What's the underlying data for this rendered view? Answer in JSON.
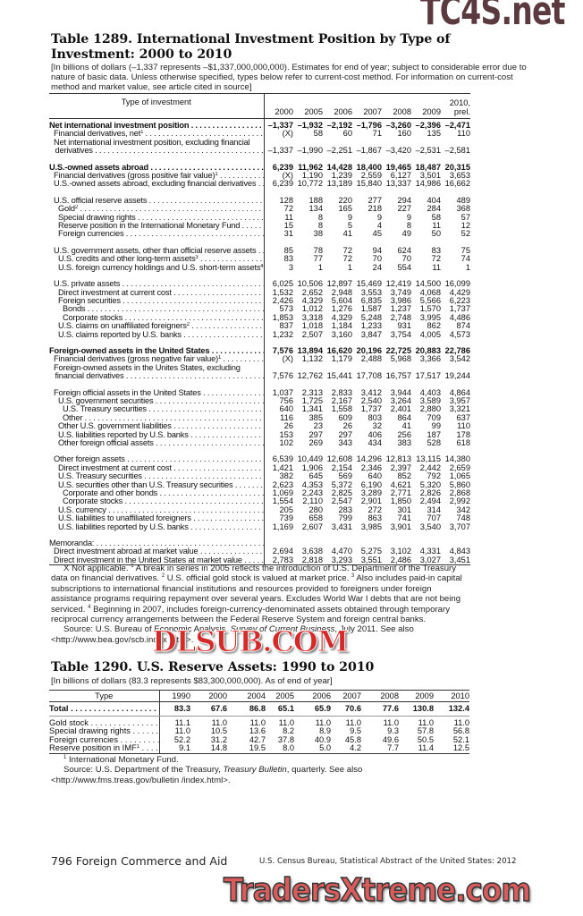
{
  "watermarks": {
    "top": "TC4S.net",
    "middle": "DLSUB.COM",
    "bottom": "TradersXtreme.com"
  },
  "table1289": {
    "title": "Table 1289. International Investment Position by Type of Investment: 2000 to 2010",
    "headnote": "[In billions of dollars (–1,337 represents –$1,337,000,000,000). Estimates for end of year; subject to considerable error due to nature of basic data. Unless otherwise specified, types below refer to current-cost method. For information on current-cost method and market value, see article cited in source]",
    "stub_header": "Type of investment",
    "columns": [
      "2000",
      "2005",
      "2006",
      "2007",
      "2008",
      "2009",
      "2010, prel."
    ],
    "groups": [
      {
        "rows": [
          {
            "label": "Net international investment position",
            "bold": true,
            "indent": 0,
            "values": [
              "–1,337",
              "–1,932",
              "–2,192",
              "–1,796",
              "–3,260",
              "–2,396",
              "–2,471"
            ]
          },
          {
            "label": "Financial derivatives, net",
            "sup": "1",
            "indent": 1,
            "values": [
              "(X)",
              "58",
              "60",
              "71",
              "160",
              "135",
              "110"
            ]
          },
          {
            "label_lines": [
              "Net international investment position, excluding financial",
              "derivatives"
            ],
            "indent": 1,
            "values": [
              "–1,337",
              "–1,990",
              "–2,251",
              "–1,867",
              "–3,420",
              "–2,531",
              "–2,581"
            ]
          }
        ]
      },
      {
        "rows": [
          {
            "label": "U.S.-owned assets abroad",
            "bold": true,
            "indent": 0,
            "values": [
              "6,239",
              "11,962",
              "14,428",
              "18,400",
              "19,465",
              "18,487",
              "20,315"
            ]
          },
          {
            "label": "Financial derivatives (gross positive fair value)",
            "sup": "1",
            "indent": 1,
            "values": [
              "(X)",
              "1,190",
              "1,239",
              "2,559",
              "6,127",
              "3,501",
              "3,653"
            ]
          },
          {
            "label": "U.S.-owned assets abroad, excluding financial derivatives",
            "indent": 1,
            "values": [
              "6,239",
              "10,772",
              "13,189",
              "15,840",
              "13,337",
              "14,986",
              "16,662"
            ]
          }
        ]
      },
      {
        "rows": [
          {
            "label": "U.S. official reserve assets",
            "indent": 1,
            "values": [
              "128",
              "188",
              "220",
              "277",
              "294",
              "404",
              "489"
            ]
          },
          {
            "label": "Gold",
            "sup": "2",
            "indent": 2,
            "values": [
              "72",
              "134",
              "165",
              "218",
              "227",
              "284",
              "368"
            ]
          },
          {
            "label": "Special drawing rights",
            "indent": 2,
            "values": [
              "11",
              "8",
              "9",
              "9",
              "9",
              "58",
              "57"
            ]
          },
          {
            "label": "Reserve position in the International Monetary Fund",
            "indent": 2,
            "values": [
              "15",
              "8",
              "5",
              "4",
              "8",
              "11",
              "12"
            ]
          },
          {
            "label": "Foreign currencies",
            "indent": 2,
            "values": [
              "31",
              "38",
              "41",
              "45",
              "49",
              "50",
              "52"
            ]
          }
        ]
      },
      {
        "rows": [
          {
            "label": "U.S. government assets, other than official reserve assets",
            "indent": 1,
            "values": [
              "85",
              "78",
              "72",
              "94",
              "624",
              "83",
              "75"
            ]
          },
          {
            "label": "U.S. credits and other long-term assets",
            "sup": "3",
            "indent": 2,
            "values": [
              "83",
              "77",
              "72",
              "70",
              "70",
              "72",
              "74"
            ]
          },
          {
            "label": "U.S. foreign currency holdings and U.S. short-term assets",
            "sup": "4",
            "indent": 2,
            "values": [
              "3",
              "1",
              "1",
              "24",
              "554",
              "11",
              "1"
            ]
          }
        ]
      },
      {
        "rows": [
          {
            "label": "U.S. private assets",
            "indent": 1,
            "values": [
              "6,025",
              "10,506",
              "12,897",
              "15,469",
              "12,419",
              "14,500",
              "16,099"
            ]
          },
          {
            "label": "Direct investment at current cost",
            "indent": 2,
            "values": [
              "1,532",
              "2,652",
              "2,948",
              "3,553",
              "3,749",
              "4,068",
              "4,429"
            ]
          },
          {
            "label": "Foreign securities",
            "indent": 2,
            "values": [
              "2,426",
              "4,329",
              "5,604",
              "6,835",
              "3,986",
              "5,566",
              "6,223"
            ]
          },
          {
            "label": "Bonds",
            "indent": 3,
            "values": [
              "573",
              "1,012",
              "1,276",
              "1,587",
              "1,237",
              "1,570",
              "1,737"
            ]
          },
          {
            "label": "Corporate stocks",
            "indent": 3,
            "values": [
              "1,853",
              "3,318",
              "4,329",
              "5,248",
              "2,748",
              "3,995",
              "4,486"
            ]
          },
          {
            "label": "U.S. claims on unaffiliated foreigners",
            "sup": "2",
            "indent": 2,
            "values": [
              "837",
              "1,018",
              "1,184",
              "1,233",
              "931",
              "862",
              "874"
            ]
          },
          {
            "label": "U.S. claims reported by U.S. banks",
            "indent": 2,
            "values": [
              "1,232",
              "2,507",
              "3,160",
              "3,847",
              "3,754",
              "4,005",
              "4,573"
            ]
          }
        ]
      },
      {
        "rows": [
          {
            "label": "Foreign-owned assets in the United States",
            "bold": true,
            "indent": 0,
            "values": [
              "7,576",
              "13,894",
              "16,620",
              "20,196",
              "22,725",
              "20,883",
              "22,786"
            ]
          },
          {
            "label": "Financial derivatives (gross negative fair value)",
            "sup": "1",
            "indent": 1,
            "values": [
              "(X)",
              "1,132",
              "1,179",
              "2,488",
              "5,968",
              "3,366",
              "3,542"
            ]
          },
          {
            "label_lines": [
              "Foreign-owned assets in the Unites States, excluding",
              " financial derivatives"
            ],
            "indent": 1,
            "values": [
              "7,576",
              "12,762",
              "15,441",
              "17,708",
              "16,757",
              "17,517",
              "19,244"
            ]
          }
        ]
      },
      {
        "rows": [
          {
            "label": "Foreign official assets in the United States",
            "indent": 1,
            "values": [
              "1,037",
              "2,313",
              "2,833",
              "3,412",
              "3,944",
              "4,403",
              "4,864"
            ]
          },
          {
            "label": "U.S. government securities",
            "indent": 2,
            "values": [
              "756",
              "1,725",
              "2,167",
              "2,540",
              "3,264",
              "3,589",
              "3,957"
            ]
          },
          {
            "label": "U.S. Treasury securities",
            "indent": 3,
            "values": [
              "640",
              "1,341",
              "1,558",
              "1,737",
              "2,401",
              "2,880",
              "3,321"
            ]
          },
          {
            "label": "Other",
            "indent": 3,
            "values": [
              "116",
              "385",
              "609",
              "803",
              "864",
              "709",
              "637"
            ]
          },
          {
            "label": "Other U.S. government liabilities",
            "indent": 2,
            "values": [
              "26",
              "23",
              "26",
              "32",
              "41",
              "99",
              "110"
            ]
          },
          {
            "label": "U.S. liabilities reported by U.S. banks",
            "indent": 2,
            "values": [
              "153",
              "297",
              "297",
              "406",
              "256",
              "187",
              "178"
            ]
          },
          {
            "label": "Other foreign official assets",
            "indent": 2,
            "values": [
              "102",
              "269",
              "343",
              "434",
              "383",
              "528",
              "618"
            ]
          }
        ]
      },
      {
        "rows": [
          {
            "label": "Other foreign assets",
            "indent": 1,
            "values": [
              "6,539",
              "10,449",
              "12,608",
              "14,296",
              "12,813",
              "13,115",
              "14,380"
            ]
          },
          {
            "label": "Direct investment at current cost",
            "indent": 2,
            "values": [
              "1,421",
              "1,906",
              "2,154",
              "2,346",
              "2,397",
              "2,442",
              "2,659"
            ]
          },
          {
            "label": "U.S. Treasury securities",
            "indent": 2,
            "values": [
              "382",
              "645",
              "569",
              "640",
              "852",
              "792",
              "1,065"
            ]
          },
          {
            "label": "U.S. securities other than U.S. Treasury securities",
            "indent": 2,
            "values": [
              "2,623",
              "4,353",
              "5,372",
              "6,190",
              "4,621",
              "5,320",
              "5,860"
            ]
          },
          {
            "label": "Corporate and other bonds",
            "indent": 3,
            "values": [
              "1,069",
              "2,243",
              "2,825",
              "3,289",
              "2,771",
              "2,826",
              "2,868"
            ]
          },
          {
            "label": "Corporate stocks",
            "indent": 3,
            "values": [
              "1,554",
              "2,110",
              "2,547",
              "2,901",
              "1,850",
              "2,494",
              "2,992"
            ]
          },
          {
            "label": "U.S. currency",
            "indent": 2,
            "values": [
              "205",
              "280",
              "283",
              "272",
              "301",
              "314",
              "342"
            ]
          },
          {
            "label": "U.S. liabilities to unaffiliated foreigners",
            "indent": 2,
            "values": [
              "739",
              "658",
              "799",
              "863",
              "741",
              "707",
              "748"
            ]
          },
          {
            "label": "U.S. liabilities reported by U.S. banks",
            "indent": 2,
            "values": [
              "1,169",
              "2,607",
              "3,431",
              "3,985",
              "3,901",
              "3,540",
              "3,707"
            ]
          }
        ]
      },
      {
        "rows": [
          {
            "label": "Memoranda:",
            "indent": 0,
            "values": []
          },
          {
            "label": "Direct investment abroad at market value",
            "indent": 1,
            "values": [
              "2,694",
              "3,638",
              "4,470",
              "5,275",
              "3,102",
              "4,331",
              "4,843"
            ]
          },
          {
            "label": "Direct investment in the United States at market value",
            "indent": 1,
            "values": [
              "2,783",
              "2,818",
              "3,293",
              "3,551",
              "2,486",
              "3,027",
              "3,451"
            ]
          }
        ]
      }
    ],
    "footnotes": [
      {
        "sup": "",
        "text": "X Not applicable. "
      },
      {
        "sup": "1",
        "text": " A break in series in 2005 reflects the introduction of U.S. Department of the Treasury data on financial derivatives. "
      },
      {
        "sup": "2",
        "text": " U.S. official gold stock is valued at market price. "
      },
      {
        "sup": "3",
        "text": " Also includes paid-in capital subscriptions to international financial institutions and resources provided to foreigners under foreign assistance programs requiring repayment over several years. Excludes World War I debts that are not being serviced. "
      },
      {
        "sup": "4",
        "text": " Beginning in 2007, includes foreign-currency-denominated assets obtained through temporary reciprocal currency arrangements between the Federal Reserve System and foreign central banks."
      }
    ],
    "source_prefix": "Source: U.S. Bureau of Economic Analysis, ",
    "source_italic": "Survey of Current Business",
    "source_suffix": ", July 2011. See also <http://www.bea.gov/scb.index .htm>."
  },
  "table1290": {
    "title": "Table 1290. U.S. Reserve Assets: 1990 to 2010",
    "headnote": "[In billions of dollars (83.3 represents $83,300,000,000). As of end of year]",
    "stub_header": "Type",
    "columns": [
      "1990",
      "2000",
      "2004",
      "2005",
      "2006",
      "2007",
      "2008",
      "2009",
      "2010"
    ],
    "rows": [
      {
        "label": "Total",
        "total": true,
        "values": [
          "83.3",
          "67.6",
          "86.8",
          "65.1",
          "65.9",
          "70.6",
          "77.6",
          "130.8",
          "132.4"
        ]
      },
      {
        "label": "Gold stock",
        "values": [
          "11.1",
          "11.0",
          "11.0",
          "11.0",
          "11.0",
          "11.0",
          "11.0",
          "11.0",
          "11.0"
        ]
      },
      {
        "label": "Special drawing rights",
        "values": [
          "11.0",
          "10.5",
          "13.6",
          "8.2",
          "8.9",
          "9.5",
          "9.3",
          "57.8",
          "56.8"
        ]
      },
      {
        "label": "Foreign currencies",
        "values": [
          "52.2",
          "31.2",
          "42.7",
          "37.8",
          "40.9",
          "45.8",
          "49.6",
          "50.5",
          "52.1"
        ]
      },
      {
        "label": "Reserve position in IMF",
        "sup": "1",
        "values": [
          "9.1",
          "14.8",
          "19.5",
          "8.0",
          "5.0",
          "4.2",
          "7.7",
          "11.4",
          "12.5"
        ]
      }
    ],
    "footnote_sup": "1",
    "footnote": " International Monetary Fund.",
    "source_prefix": "Source: U.S. Department of the Treasury, ",
    "source_italic": "Treasury Bulletin",
    "source_suffix": ", quarterly. See also <http://www.fms.treas.gov/bulletin /index.html>."
  },
  "footer": {
    "page_section": "796  Foreign Commerce and Aid",
    "publication": "U.S. Census Bureau, Statistical Abstract of the United States: 2012"
  }
}
